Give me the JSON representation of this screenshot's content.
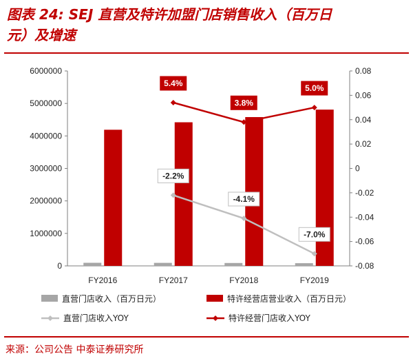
{
  "header": {
    "title_line1": "图表 24: SEJ 直营及特许加盟门店销售收入（百万日",
    "title_line2": "元）及增速"
  },
  "source": "来源：公司公告  中泰证券研究所",
  "colors": {
    "accent": "#c00000",
    "franchise": "#c00000",
    "direct": "#a6a6a6",
    "direct_line": "#bfbfbf"
  },
  "chart_data": {
    "type": "bar",
    "categories": [
      "FY2016",
      "FY2017",
      "FY2018",
      "FY2019"
    ],
    "y_left": {
      "min": 0,
      "max": 6000000,
      "ticks": [
        "0",
        "1000000",
        "2000000",
        "3000000",
        "4000000",
        "5000000",
        "6000000"
      ]
    },
    "y_right": {
      "min": -0.08,
      "max": 0.08,
      "ticks": [
        "0.08",
        "0.06",
        "0.04",
        "0.02",
        "0",
        "-0.02",
        "-0.04",
        "-0.06",
        "-0.08"
      ]
    },
    "series": [
      {
        "name": "直营门店收入（百万日元）",
        "kind": "bar",
        "axis": "left",
        "values": [
          95000,
          93000,
          89000,
          83000
        ]
      },
      {
        "name": "特许经营店营业收入（百万日元）",
        "kind": "bar",
        "axis": "left",
        "values": [
          4190000,
          4420000,
          4580000,
          4810000
        ]
      },
      {
        "name": "直营门店收入YOY",
        "kind": "line",
        "axis": "right",
        "values": [
          null,
          -0.022,
          -0.041,
          -0.07
        ],
        "labels": [
          "",
          "-2.2%",
          "-4.1%",
          "-7.0%"
        ]
      },
      {
        "name": "特许经营门店收入YOY",
        "kind": "line",
        "axis": "right",
        "values": [
          null,
          0.054,
          0.038,
          0.05
        ],
        "labels": [
          "",
          "5.4%",
          "3.8%",
          "5.0%"
        ]
      }
    ],
    "legend": "bottom"
  }
}
